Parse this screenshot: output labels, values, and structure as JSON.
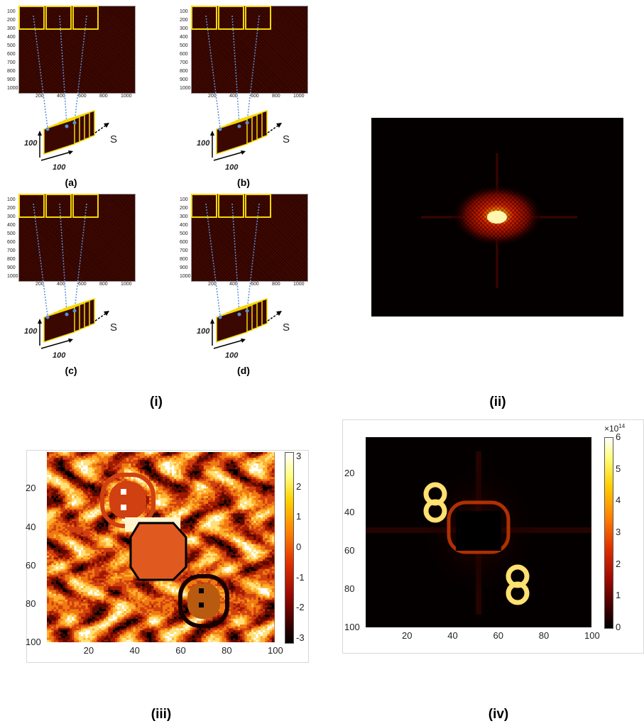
{
  "subpanels": [
    {
      "label": "(a)",
      "size_label_a": "100",
      "size_label_b": "100",
      "s_label": "S"
    },
    {
      "label": "(b)",
      "size_label_a": "100",
      "size_label_b": "100",
      "s_label": "S"
    },
    {
      "label": "(c)",
      "size_label_a": "100",
      "size_label_b": "100",
      "s_label": "S"
    },
    {
      "label": "(d)",
      "size_label_a": "100",
      "size_label_b": "100",
      "s_label": "S"
    }
  ],
  "noise_axes": {
    "yticks": [
      "100",
      "200",
      "300",
      "400",
      "500",
      "600",
      "700",
      "800",
      "900",
      "1000"
    ],
    "xticks": [
      "200",
      "400",
      "600",
      "800",
      "1000"
    ]
  },
  "panel_labels": {
    "i": "(i)",
    "ii": "(ii)",
    "iii": "(iii)",
    "iv": "(iv)"
  },
  "chart_data": [
    {
      "type": "heatmap",
      "panel": "(iii)",
      "xticks": [
        "20",
        "40",
        "60",
        "80",
        "100"
      ],
      "yticks": [
        "20",
        "40",
        "60",
        "80",
        "100"
      ],
      "xlim": [
        1,
        100
      ],
      "ylim": [
        1,
        100
      ],
      "colorbar": {
        "ticks": [
          "3",
          "2",
          "1",
          "0",
          "-1",
          "-2",
          "-3"
        ],
        "range": [
          -3.14,
          3.14
        ]
      },
      "colormap": "hot"
    },
    {
      "type": "heatmap",
      "panel": "(iv)",
      "xticks": [
        "20",
        "40",
        "60",
        "80",
        "100"
      ],
      "yticks": [
        "20",
        "40",
        "60",
        "80",
        "100"
      ],
      "xlim": [
        1,
        100
      ],
      "ylim": [
        1,
        100
      ],
      "colorbar": {
        "ticks": [
          "6",
          "5",
          "4",
          "3",
          "2",
          "1",
          "0"
        ],
        "range": [
          0,
          6
        ],
        "exponent": "×10",
        "exponent_power": "14"
      },
      "colormap": "hot"
    }
  ],
  "colors": {
    "accent_yellow": "#f5d800",
    "arrow_blue": "#5b8fd6",
    "dark_red": "#2a0400"
  }
}
